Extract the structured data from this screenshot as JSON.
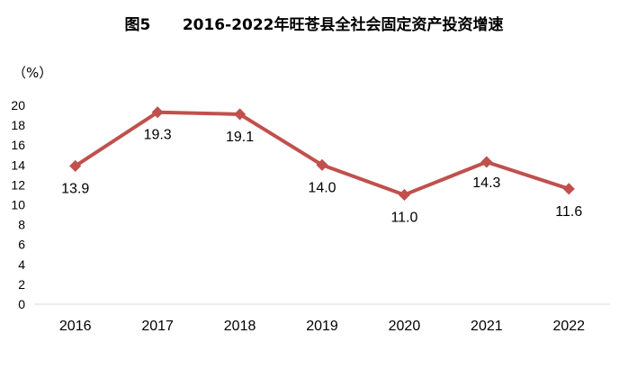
{
  "chart_data": {
    "type": "line",
    "title": "图5      2016-2022年旺苍县全社会固定资产投资增速",
    "unit_label": "（%）",
    "xlabel": "",
    "ylabel": "",
    "categories": [
      "2016",
      "2017",
      "2018",
      "2019",
      "2020",
      "2021",
      "2022"
    ],
    "series": [
      {
        "values": [
          13.9,
          19.3,
          19.1,
          14.0,
          11.0,
          14.3,
          11.6
        ],
        "labels": [
          "13.9",
          "19.3",
          "19.1",
          "14.0",
          "11.0",
          "14.3",
          "11.6"
        ],
        "color": "#c0504d"
      }
    ],
    "ylim": [
      0,
      20
    ],
    "yticks": [
      0,
      2,
      4,
      6,
      8,
      10,
      12,
      14,
      16,
      18,
      20
    ],
    "ytick_labels": [
      "0",
      "2",
      "4",
      "6",
      "8",
      "10",
      "12",
      "14",
      "16",
      "18",
      "20"
    ],
    "grid": false,
    "legend": "none"
  }
}
